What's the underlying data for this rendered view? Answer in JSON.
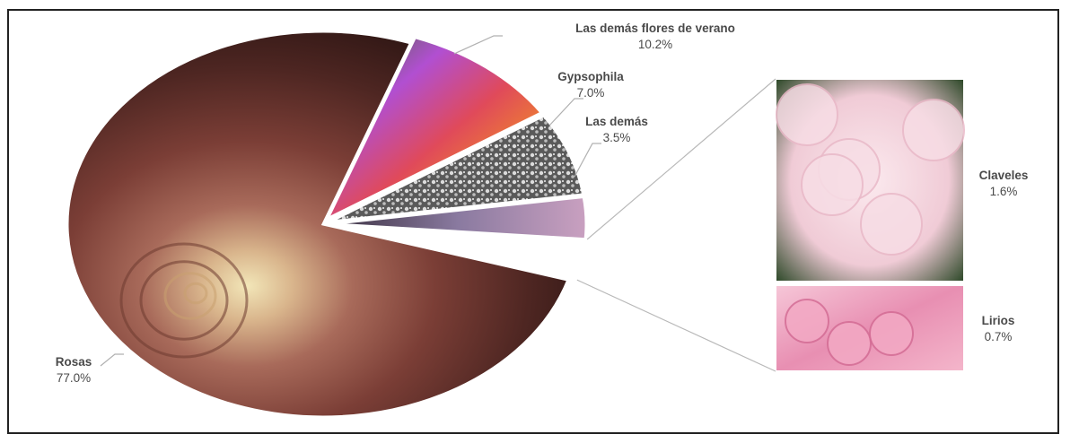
{
  "chart_data": {
    "type": "pie",
    "title": "",
    "slices": [
      {
        "label": "Rosas",
        "value": 77.0,
        "value_label": "77.0%",
        "image": "roses",
        "color": "#8a4a42"
      },
      {
        "label": "Las demás flores de verano",
        "value": 10.2,
        "value_label": "10.2%",
        "image": "summer-flowers",
        "color": "#9a4fb4"
      },
      {
        "label": "Gypsophila",
        "value": 7.0,
        "value_label": "7.0%",
        "image": "gypsophila",
        "color": "#8a8a8a"
      },
      {
        "label": "Las demás",
        "value": 3.5,
        "value_label": "3.5%",
        "image": "mixed-flowers",
        "color": "#6a5a7a"
      }
    ],
    "breakout": [
      {
        "label": "Claveles",
        "value": 1.6,
        "value_label": "1.6%",
        "image": "carnations",
        "color": "#f0d0dc"
      },
      {
        "label": "Lirios",
        "value": 0.7,
        "value_label": "0.7%",
        "image": "lilies",
        "color": "#e89ab8"
      }
    ],
    "legend": "none",
    "labels": "outside-with-leader-lines"
  }
}
